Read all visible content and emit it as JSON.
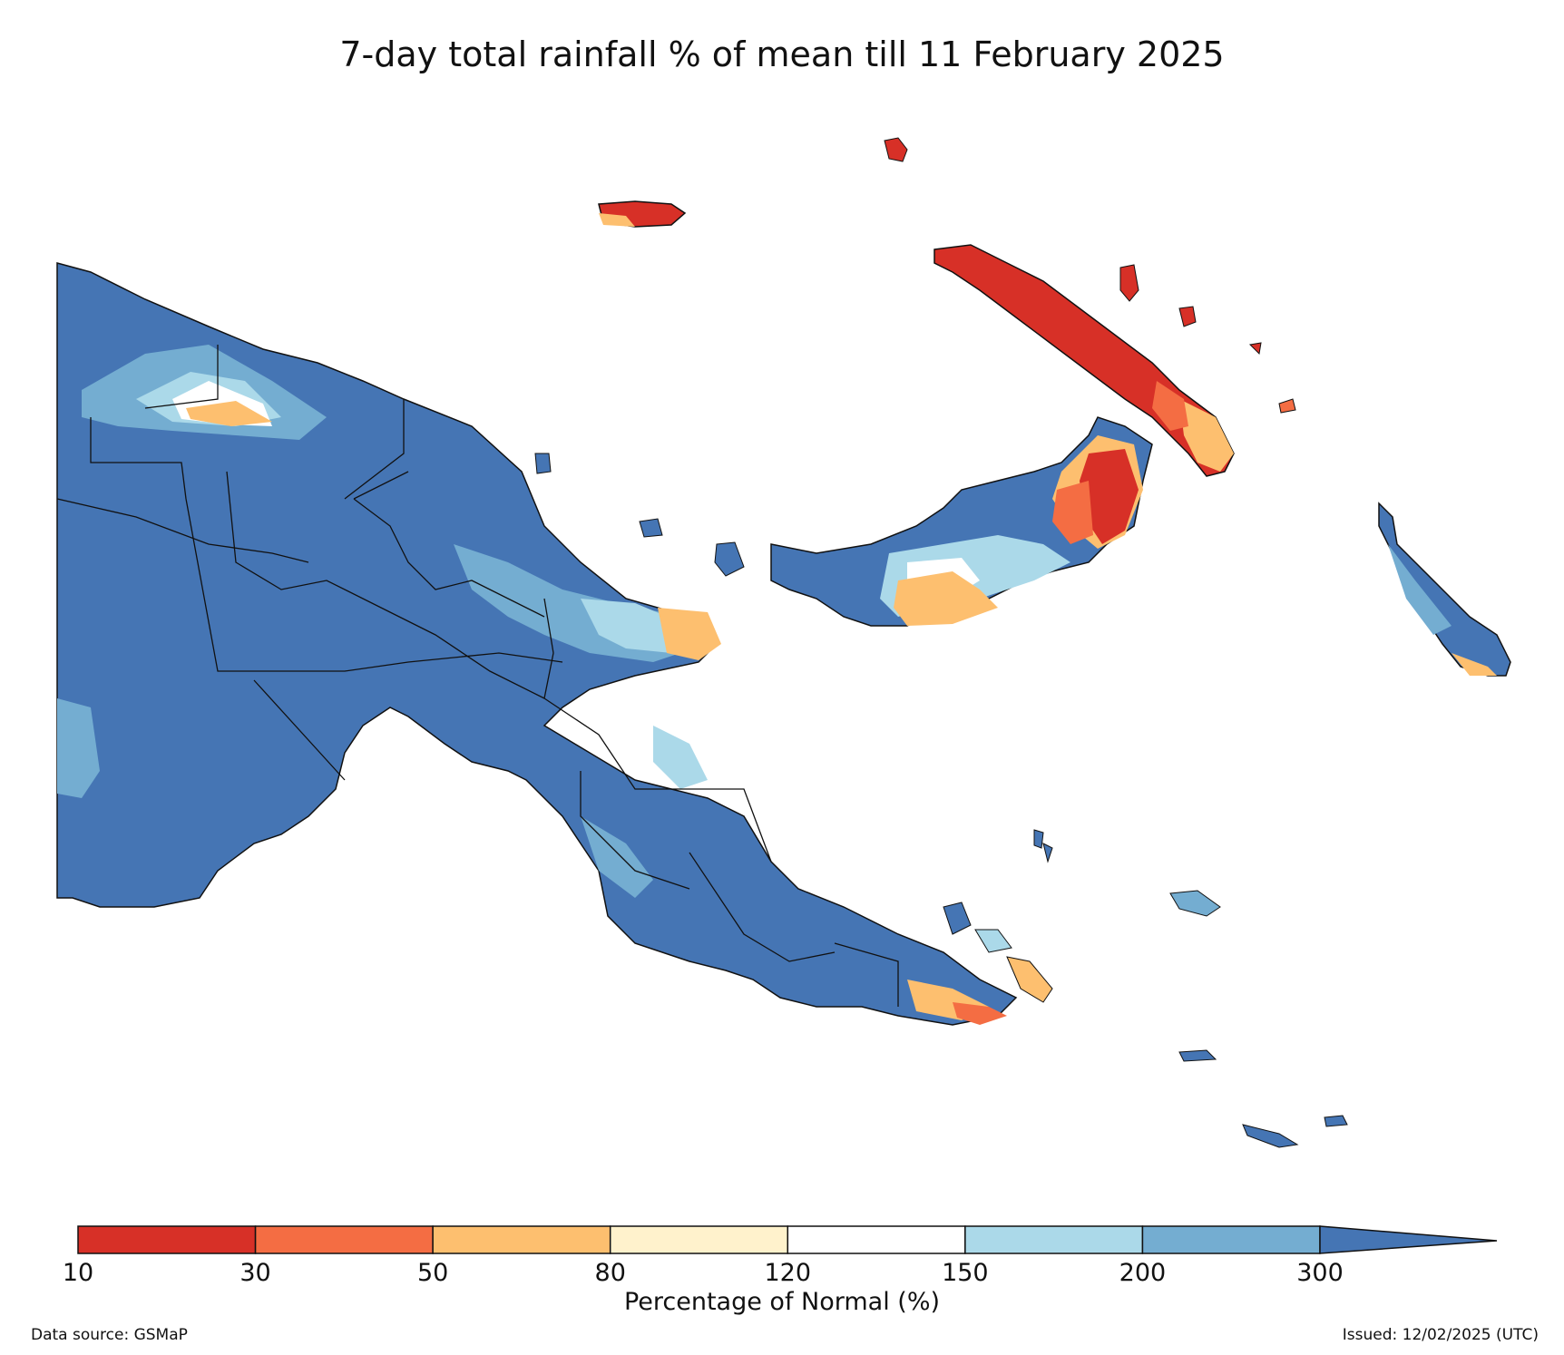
{
  "title": "7-day total rainfall % of mean till 11 February 2025",
  "colorbar": {
    "label": "Percentage of Normal (%)",
    "ticks": [
      "10",
      "30",
      "50",
      "80",
      "120",
      "150",
      "200",
      "300"
    ],
    "classes": [
      {
        "range": "10-30",
        "color": "#d73027"
      },
      {
        "range": "30-50",
        "color": "#f46d43"
      },
      {
        "range": "50-80",
        "color": "#fdbf6f"
      },
      {
        "range": "80-120",
        "color": "#fff2cc"
      },
      {
        "range": "120-150",
        "color": "#ffffff"
      },
      {
        "range": "150-200",
        "color": "#abd9e9"
      },
      {
        "range": "200-300",
        "color": "#74add1"
      },
      {
        "range": ">300",
        "color": "#4575b4"
      }
    ],
    "extend": "max"
  },
  "footer": {
    "source": "Data source: GSMaP",
    "issued": "Issued: 12/02/2025 (UTC)"
  },
  "map": {
    "region": "Papua New Guinea",
    "dominant_class": ">300",
    "icons": [
      "province-boundaries",
      "coastline"
    ]
  }
}
